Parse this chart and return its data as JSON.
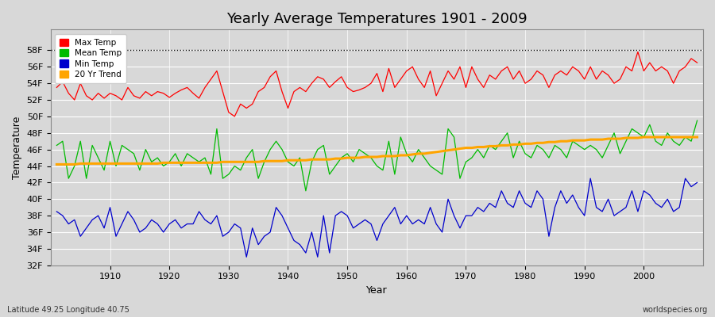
{
  "title": "Yearly Average Temperatures 1901 - 2009",
  "xlabel": "Year",
  "ylabel": "Temperature",
  "subtitle_left": "Latitude 49.25 Longitude 40.75",
  "subtitle_right": "worldspecies.org",
  "year_start": 1901,
  "year_end": 2009,
  "ylim": [
    32,
    59
  ],
  "yticks": [
    32,
    34,
    36,
    38,
    40,
    42,
    44,
    46,
    48,
    50,
    52,
    54,
    56,
    58
  ],
  "ytick_labels": [
    "32F",
    "34F",
    "36F",
    "38F",
    "40F",
    "42F",
    "44F",
    "46F",
    "48F",
    "50F",
    "52F",
    "54F",
    "56F",
    "58F"
  ],
  "bg_color": "#d8d8d8",
  "plot_bg_color": "#d8d8d8",
  "max_temp_color": "#ff0000",
  "mean_temp_color": "#00bb00",
  "min_temp_color": "#0000cc",
  "trend_color": "#ffa500",
  "dotted_line_y": 58,
  "max_temps": [
    53.5,
    54.2,
    52.8,
    52.0,
    54.0,
    52.5,
    52.0,
    52.8,
    52.2,
    52.8,
    52.5,
    52.0,
    53.5,
    52.5,
    52.2,
    53.0,
    52.5,
    53.0,
    52.8,
    52.3,
    52.8,
    53.2,
    53.5,
    52.8,
    52.2,
    53.5,
    54.5,
    55.5,
    53.0,
    50.5,
    50.0,
    51.5,
    51.0,
    51.5,
    53.0,
    53.5,
    54.8,
    55.5,
    53.0,
    51.0,
    53.0,
    53.5,
    53.0,
    54.0,
    54.8,
    54.5,
    53.5,
    54.2,
    54.8,
    53.5,
    53.0,
    53.2,
    53.5,
    54.0,
    55.2,
    53.0,
    55.8,
    53.5,
    54.5,
    55.5,
    56.0,
    54.5,
    53.5,
    55.5,
    52.5,
    54.0,
    55.5,
    54.5,
    56.0,
    53.5,
    56.0,
    54.5,
    53.5,
    55.0,
    54.5,
    55.5,
    56.0,
    54.5,
    55.5,
    54.0,
    54.5,
    55.5,
    55.0,
    53.5,
    55.0,
    55.5,
    55.0,
    56.0,
    55.5,
    54.5,
    56.0,
    54.5,
    55.5,
    55.0,
    54.0,
    54.5,
    56.0,
    55.5,
    57.8,
    55.5,
    56.5,
    55.5,
    56.0,
    55.5,
    54.0,
    55.5,
    56.0,
    57.0,
    56.5
  ],
  "mean_temps": [
    46.5,
    47.0,
    42.5,
    44.0,
    47.0,
    42.5,
    46.5,
    45.0,
    43.5,
    47.0,
    44.0,
    46.5,
    46.0,
    45.5,
    43.5,
    46.0,
    44.5,
    45.0,
    44.0,
    44.5,
    45.5,
    44.0,
    45.5,
    45.0,
    44.5,
    45.0,
    43.0,
    48.5,
    42.5,
    43.0,
    44.0,
    43.5,
    45.0,
    46.0,
    42.5,
    44.5,
    46.0,
    47.0,
    46.0,
    44.5,
    44.0,
    45.0,
    41.0,
    44.5,
    46.0,
    46.5,
    43.0,
    44.0,
    45.0,
    45.5,
    44.5,
    46.0,
    45.5,
    45.0,
    44.0,
    43.5,
    47.0,
    43.0,
    47.5,
    45.5,
    44.5,
    46.0,
    45.0,
    44.0,
    43.5,
    43.0,
    48.5,
    47.5,
    42.5,
    44.5,
    45.0,
    46.0,
    45.0,
    46.5,
    46.0,
    47.0,
    48.0,
    45.0,
    47.0,
    45.5,
    45.0,
    46.5,
    46.0,
    45.0,
    46.5,
    46.0,
    45.0,
    47.0,
    46.5,
    46.0,
    46.5,
    46.0,
    45.0,
    46.5,
    48.0,
    45.5,
    47.0,
    48.5,
    48.0,
    47.5,
    49.0,
    47.0,
    46.5,
    48.0,
    47.0,
    46.5,
    47.5,
    47.0,
    49.5
  ],
  "min_temps": [
    38.5,
    38.0,
    37.0,
    37.5,
    35.5,
    36.5,
    37.5,
    38.0,
    36.5,
    39.0,
    35.5,
    37.0,
    38.5,
    37.5,
    36.0,
    36.5,
    37.5,
    37.0,
    36.0,
    37.0,
    37.5,
    36.5,
    37.0,
    37.0,
    38.5,
    37.5,
    37.0,
    38.0,
    35.5,
    36.0,
    37.0,
    36.5,
    33.0,
    36.5,
    34.5,
    35.5,
    36.0,
    39.0,
    38.0,
    36.5,
    35.0,
    34.5,
    33.5,
    36.0,
    33.0,
    38.0,
    33.5,
    38.0,
    38.5,
    38.0,
    36.5,
    37.0,
    37.5,
    37.0,
    35.0,
    37.0,
    38.0,
    39.0,
    37.0,
    38.0,
    37.0,
    37.5,
    37.0,
    39.0,
    37.0,
    36.0,
    40.0,
    38.0,
    36.5,
    38.0,
    38.0,
    39.0,
    38.5,
    39.5,
    39.0,
    41.0,
    39.5,
    39.0,
    41.0,
    39.5,
    39.0,
    41.0,
    40.0,
    35.5,
    39.0,
    41.0,
    39.5,
    40.5,
    39.0,
    38.0,
    42.5,
    39.0,
    38.5,
    40.0,
    38.0,
    38.5,
    39.0,
    41.0,
    38.5,
    41.0,
    40.5,
    39.5,
    39.0,
    40.0,
    38.5,
    39.0,
    42.5,
    41.5,
    42.0
  ],
  "trend_temps": [
    44.2,
    44.2,
    44.2,
    44.2,
    44.3,
    44.3,
    44.3,
    44.3,
    44.3,
    44.3,
    44.3,
    44.3,
    44.3,
    44.3,
    44.3,
    44.3,
    44.3,
    44.3,
    44.4,
    44.4,
    44.4,
    44.4,
    44.4,
    44.4,
    44.4,
    44.4,
    44.4,
    44.4,
    44.5,
    44.5,
    44.5,
    44.5,
    44.5,
    44.5,
    44.5,
    44.6,
    44.6,
    44.6,
    44.6,
    44.7,
    44.7,
    44.7,
    44.7,
    44.8,
    44.8,
    44.8,
    44.8,
    44.9,
    44.9,
    45.0,
    45.0,
    45.0,
    45.1,
    45.1,
    45.1,
    45.2,
    45.2,
    45.2,
    45.3,
    45.3,
    45.4,
    45.5,
    45.5,
    45.6,
    45.7,
    45.8,
    45.9,
    46.0,
    46.1,
    46.2,
    46.2,
    46.3,
    46.3,
    46.4,
    46.4,
    46.5,
    46.5,
    46.6,
    46.6,
    46.7,
    46.7,
    46.8,
    46.8,
    46.9,
    46.9,
    47.0,
    47.0,
    47.1,
    47.1,
    47.1,
    47.2,
    47.2,
    47.2,
    47.3,
    47.3,
    47.3,
    47.4,
    47.4,
    47.4,
    47.5,
    47.5,
    47.5,
    47.5,
    47.5,
    47.5,
    47.5,
    47.5,
    47.5,
    47.5
  ]
}
